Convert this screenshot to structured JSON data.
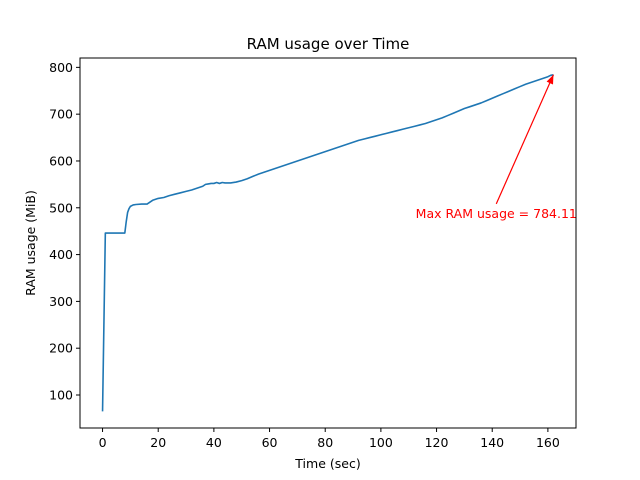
{
  "chart_data": {
    "type": "line",
    "title": "RAM usage over Time",
    "xlabel": "Time (sec)",
    "ylabel": "RAM usage (MiB)",
    "xlim": [
      -8.1,
      170.1
    ],
    "ylim": [
      29.5,
      820
    ],
    "x_ticks": [
      0,
      20,
      40,
      60,
      80,
      100,
      120,
      140,
      160
    ],
    "y_ticks": [
      100,
      200,
      300,
      400,
      500,
      600,
      700,
      800
    ],
    "grid": false,
    "line_color": "#1f77b4",
    "series": [
      {
        "x": [
          0,
          1,
          2,
          4,
          6,
          8,
          8.5,
          9,
          9.5,
          10,
          11,
          12,
          14,
          16,
          17,
          18,
          20,
          22,
          24,
          26,
          28,
          30,
          32,
          34,
          36,
          37,
          38,
          39,
          40,
          41,
          42,
          43,
          44,
          46,
          48,
          50,
          52,
          54,
          56,
          58,
          60,
          62,
          64,
          66,
          68,
          70,
          72,
          74,
          76,
          78,
          80,
          82,
          84,
          86,
          88,
          90,
          92,
          94,
          96,
          98,
          100,
          102,
          104,
          106,
          108,
          110,
          112,
          114,
          116,
          118,
          120,
          122,
          124,
          126,
          128,
          130,
          132,
          134,
          136,
          138,
          140,
          142,
          144,
          146,
          148,
          150,
          152,
          154,
          156,
          158,
          160,
          161,
          162
        ],
        "y": [
          65,
          446,
          446,
          446,
          446,
          446,
          470,
          490,
          498,
          503,
          506,
          507,
          508,
          508,
          512,
          516,
          520,
          522,
          526,
          529,
          532,
          535,
          538,
          542,
          546,
          550,
          551,
          552,
          552,
          554,
          552,
          554,
          553,
          553,
          555,
          558,
          562,
          567,
          572,
          576,
          580,
          584,
          588,
          592,
          596,
          600,
          604,
          608,
          612,
          616,
          620,
          624,
          628,
          632,
          636,
          640,
          644,
          647,
          650,
          653,
          656,
          659,
          662,
          665,
          668,
          671,
          674,
          677,
          680,
          684,
          688,
          692,
          697,
          702,
          707,
          712,
          716,
          720,
          724,
          729,
          734,
          739,
          744,
          749,
          754,
          759,
          764,
          768,
          772,
          776,
          780,
          783,
          784.11
        ]
      }
    ],
    "annotations": [
      {
        "text": "Max RAM usage = 784.11",
        "xy": [
          162,
          784.11
        ],
        "xytext": [
          112.5,
          488
        ],
        "color": "#ff0000",
        "arrow": true
      }
    ]
  }
}
